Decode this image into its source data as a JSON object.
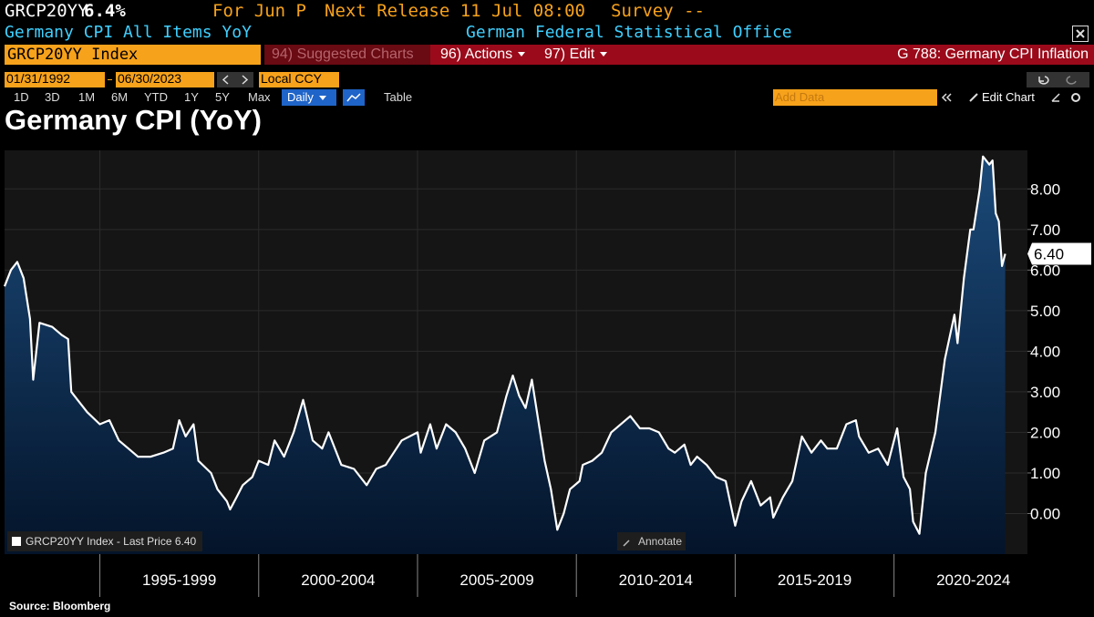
{
  "header": {
    "ticker": "GRCP20YY",
    "price": "6.4%",
    "period": "For Jun P",
    "next_release": "Next Release 11 Jul 08:00",
    "survey": "Survey --",
    "description": "Germany CPI All Items YoY",
    "agency": "German Federal Statistical Office"
  },
  "toolbar": {
    "security": "GRCP20YY Index",
    "suggested": "94) Suggested Charts",
    "actions": "96) Actions",
    "edit": "97) Edit",
    "page": "G 788: Germany CPI Inflation",
    "start_date": "01/31/1992",
    "end_date": "06/30/2023",
    "currency": "Local CCY",
    "ranges": [
      "1D",
      "3D",
      "1M",
      "6M",
      "YTD",
      "1Y",
      "5Y",
      "Max"
    ],
    "frequency": "Daily",
    "table": "Table",
    "add_data": "Add Data",
    "edit_chart": "Edit Chart"
  },
  "annotate": "Annotate",
  "source": "Source: Bloomberg",
  "chart_data": {
    "type": "area",
    "title": "Germany CPI (YoY)",
    "x": [
      1992.0,
      1992.2,
      1992.4,
      1992.6,
      1992.8,
      1992.9,
      1993.1,
      1993.5,
      1993.8,
      1994.0,
      1994.1,
      1994.3,
      1994.6,
      1995.0,
      1995.3,
      1995.6,
      1995.9,
      1996.2,
      1996.6,
      1997.0,
      1997.3,
      1997.5,
      1997.7,
      1997.95,
      1998.1,
      1998.5,
      1998.7,
      1999.0,
      1999.1,
      1999.3,
      1999.5,
      1999.8,
      2000.0,
      2000.3,
      2000.5,
      2000.8,
      2001.1,
      2001.4,
      2001.7,
      2002.0,
      2002.2,
      2002.6,
      2003.0,
      2003.4,
      2003.7,
      2004.0,
      2004.5,
      2005.0,
      2005.1,
      2005.4,
      2005.6,
      2005.9,
      2006.2,
      2006.5,
      2006.8,
      2007.1,
      2007.5,
      2007.8,
      2008.0,
      2008.2,
      2008.4,
      2008.6,
      2009.0,
      2009.2,
      2009.4,
      2009.6,
      2009.8,
      2010.1,
      2010.2,
      2010.5,
      2010.8,
      2011.1,
      2011.7,
      2012.0,
      2012.3,
      2012.6,
      2012.9,
      2013.1,
      2013.4,
      2013.6,
      2013.8,
      2014.1,
      2014.4,
      2014.7,
      2015.0,
      2015.2,
      2015.5,
      2015.8,
      2016.1,
      2016.2,
      2016.5,
      2016.8,
      2017.1,
      2017.4,
      2017.7,
      2017.9,
      2018.2,
      2018.5,
      2018.8,
      2018.9,
      2019.2,
      2019.5,
      2019.8,
      2020.1,
      2020.3,
      2020.5,
      2020.6,
      2020.8,
      2021.0,
      2021.3,
      2021.6,
      2021.9,
      2022.0,
      2022.2,
      2022.4,
      2022.5,
      2022.7,
      2022.8,
      2023.0,
      2023.1,
      2023.2,
      2023.3,
      2023.4,
      2023.5
    ],
    "series": [
      {
        "name": "GRCP20YY Index - Last Price 6.40",
        "color": "#ffffff",
        "fill": "#0b2a4d",
        "values": [
          5.6,
          6.0,
          6.2,
          5.8,
          4.8,
          3.3,
          4.7,
          4.6,
          4.4,
          4.3,
          3.0,
          2.8,
          2.5,
          2.2,
          2.3,
          1.8,
          1.6,
          1.4,
          1.4,
          1.5,
          1.6,
          2.3,
          1.9,
          2.2,
          1.3,
          1.0,
          0.6,
          0.3,
          0.1,
          0.4,
          0.7,
          0.9,
          1.3,
          1.2,
          1.8,
          1.4,
          2.0,
          2.8,
          1.8,
          1.6,
          2.0,
          1.2,
          1.1,
          0.7,
          1.1,
          1.2,
          1.8,
          2.0,
          1.5,
          2.2,
          1.6,
          2.2,
          2.0,
          1.6,
          1.0,
          1.8,
          2.0,
          2.9,
          3.4,
          2.9,
          2.6,
          3.3,
          1.3,
          0.6,
          -0.4,
          0.0,
          0.6,
          0.8,
          1.2,
          1.3,
          1.5,
          2.0,
          2.4,
          2.1,
          2.1,
          2.0,
          1.6,
          1.5,
          1.7,
          1.2,
          1.4,
          1.2,
          0.9,
          0.8,
          -0.3,
          0.3,
          0.8,
          0.2,
          0.4,
          -0.1,
          0.4,
          0.8,
          1.9,
          1.5,
          1.8,
          1.6,
          1.6,
          2.2,
          2.3,
          1.9,
          1.5,
          1.6,
          1.2,
          2.1,
          0.9,
          0.6,
          -0.2,
          -0.5,
          1.0,
          2.0,
          3.8,
          4.9,
          4.2,
          5.8,
          7.0,
          7.0,
          8.0,
          8.8,
          8.6,
          8.7,
          7.4,
          7.2,
          6.1,
          6.4
        ]
      }
    ],
    "last_price_label": "6.40",
    "xlim": [
      1992.0,
      2024.2
    ],
    "xticks": [
      {
        "value": 1997.5,
        "label": "1995-1999"
      },
      {
        "value": 2002.5,
        "label": "2000-2004"
      },
      {
        "value": 2007.5,
        "label": "2005-2009"
      },
      {
        "value": 2012.5,
        "label": "2010-2014"
      },
      {
        "value": 2017.5,
        "label": "2015-2019"
      },
      {
        "value": 2022.5,
        "label": "2020-2024"
      }
    ],
    "ylim": [
      -1.0,
      8.95
    ],
    "yticks": [
      {
        "value": 0,
        "label": "0.00"
      },
      {
        "value": 1,
        "label": "1.00"
      },
      {
        "value": 2,
        "label": "2.00"
      },
      {
        "value": 3,
        "label": "3.00"
      },
      {
        "value": 4,
        "label": "4.00"
      },
      {
        "value": 5,
        "label": "5.00"
      },
      {
        "value": 6,
        "label": "6.00"
      },
      {
        "value": 7,
        "label": "7.00"
      },
      {
        "value": 8,
        "label": "8.00"
      }
    ],
    "grid": true
  }
}
